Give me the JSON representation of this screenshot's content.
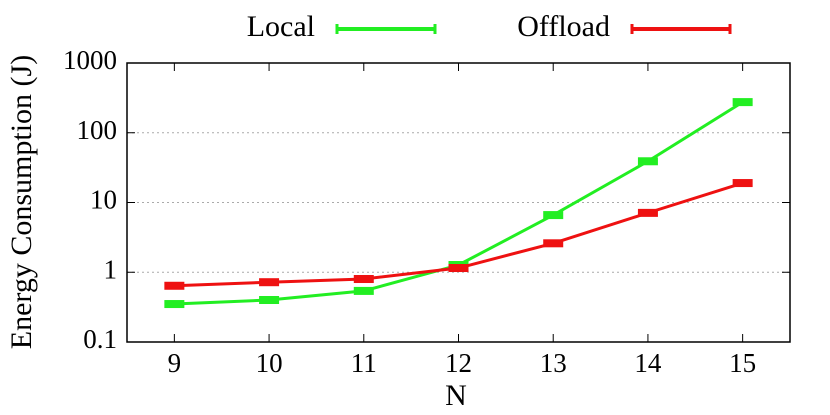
{
  "chart_data": {
    "type": "line",
    "x_label": "N",
    "y_label": "Energy Consumption (J)",
    "x": [
      9,
      10,
      11,
      12,
      13,
      14,
      15
    ],
    "series": [
      {
        "name": "Local",
        "color": "#22ee22",
        "values": [
          0.35,
          0.4,
          0.54,
          1.27,
          6.6,
          39,
          275
        ]
      },
      {
        "name": "Offload",
        "color": "#ee1111",
        "values": [
          0.64,
          0.72,
          0.8,
          1.15,
          2.6,
          7.1,
          19
        ]
      }
    ],
    "xlim": [
      8.5,
      15.5
    ],
    "xticks": [
      9,
      10,
      11,
      12,
      13,
      14,
      15
    ],
    "ylim": [
      0.1,
      1000
    ],
    "yticks": [
      0.1,
      1,
      10,
      100,
      1000
    ],
    "y_scale": "log",
    "grid": true
  }
}
